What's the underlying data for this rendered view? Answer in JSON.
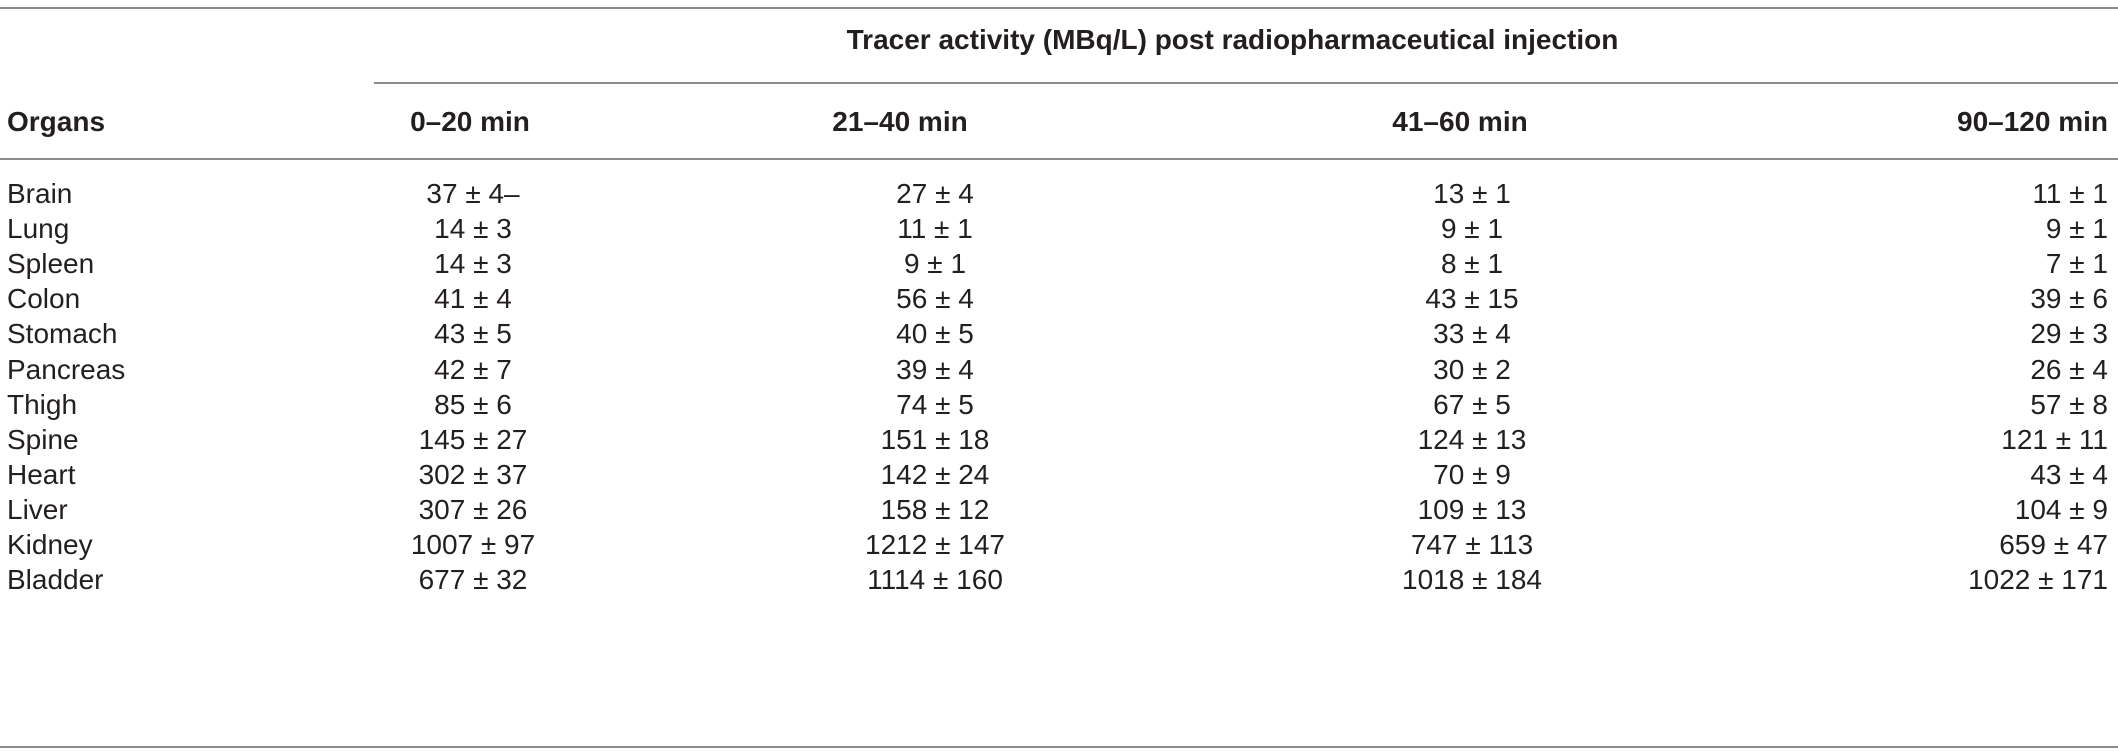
{
  "table": {
    "group_header": "Tracer activity (MBq/L) post radiopharmaceutical injection",
    "row_header": "Organs",
    "columns": [
      "0–20 min",
      "21–40 min",
      "41–60 min",
      "90–120 min"
    ],
    "rows": [
      {
        "organ": "Brain",
        "values": [
          "37 ± 4–",
          "27 ± 4",
          "13 ± 1",
          "11 ± 1"
        ]
      },
      {
        "organ": "Lung",
        "values": [
          "14 ± 3",
          "11 ± 1",
          "9 ± 1",
          "9 ± 1"
        ]
      },
      {
        "organ": "Spleen",
        "values": [
          "14 ± 3",
          "9 ± 1",
          "8 ± 1",
          "7 ± 1"
        ]
      },
      {
        "organ": "Colon",
        "values": [
          "41 ± 4",
          "56 ± 4",
          "43 ± 15",
          "39 ± 6"
        ]
      },
      {
        "organ": "Stomach",
        "values": [
          "43 ± 5",
          "40 ± 5",
          "33 ± 4",
          "29 ± 3"
        ]
      },
      {
        "organ": "Pancreas",
        "values": [
          "42 ± 7",
          "39 ± 4",
          "30 ± 2",
          "26 ± 4"
        ]
      },
      {
        "organ": "Thigh",
        "values": [
          "85 ± 6",
          "74 ± 5",
          "67 ± 5",
          "57 ± 8"
        ]
      },
      {
        "organ": "Spine",
        "values": [
          "145 ± 27",
          "151 ± 18",
          "124 ± 13",
          "121 ± 11"
        ]
      },
      {
        "organ": "Heart",
        "values": [
          "302 ± 37",
          "142 ± 24",
          "70 ± 9",
          "43 ± 4"
        ]
      },
      {
        "organ": "Liver",
        "values": [
          "307 ± 26",
          "158 ± 12",
          "109 ± 13",
          "104 ± 9"
        ]
      },
      {
        "organ": "Kidney",
        "values": [
          "1007 ± 97",
          "1212 ± 147",
          "747 ± 113",
          "659 ± 47"
        ]
      },
      {
        "organ": "Bladder",
        "values": [
          "677 ± 32",
          "1114 ± 160",
          "1018 ± 184",
          "1022 ± 171"
        ]
      }
    ]
  }
}
